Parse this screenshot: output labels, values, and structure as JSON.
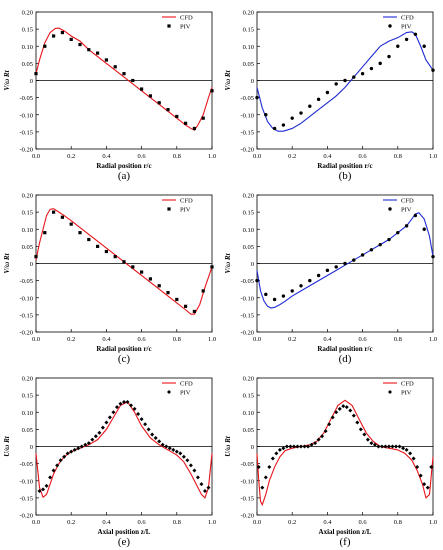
{
  "figure": {
    "colors": {
      "cfd_red": "#e8141c",
      "cfd_blue": "#1f2bd4",
      "piv": "#000000",
      "axis": "#000000"
    }
  },
  "chart_data": [
    {
      "id": "a",
      "type": "line",
      "panel_label": "(a)",
      "xlabel": "Radial position r/c",
      "ylabel": "V/ω Rt",
      "xlim": [
        0.0,
        1.0
      ],
      "ylim": [
        -0.2,
        0.2
      ],
      "xticks": [
        "0.0",
        "0.2",
        "0.4",
        "0.6",
        "0.8",
        "1.0"
      ],
      "yticks": [
        "0.20",
        "0.15",
        "0.10",
        "0.05",
        "0",
        "-0.05",
        "-0.10",
        "-0.15",
        "-0.20"
      ],
      "legend": "top-right",
      "series": [
        {
          "name": "CFD",
          "style": "line",
          "color": "red",
          "x": [
            0.0,
            0.02,
            0.05,
            0.08,
            0.11,
            0.13,
            0.16,
            0.2,
            0.25,
            0.3,
            0.35,
            0.4,
            0.45,
            0.5,
            0.55,
            0.6,
            0.65,
            0.7,
            0.75,
            0.8,
            0.85,
            0.88,
            0.9,
            0.92,
            0.95,
            0.98,
            1.0
          ],
          "y": [
            0.02,
            0.06,
            0.11,
            0.14,
            0.152,
            0.153,
            0.145,
            0.13,
            0.115,
            0.09,
            0.07,
            0.05,
            0.03,
            0.01,
            -0.01,
            -0.03,
            -0.05,
            -0.07,
            -0.09,
            -0.11,
            -0.13,
            -0.14,
            -0.145,
            -0.13,
            -0.1,
            -0.05,
            -0.02
          ]
        },
        {
          "name": "PIV",
          "style": "markers",
          "marker": "square",
          "x": [
            0.0,
            0.05,
            0.1,
            0.15,
            0.2,
            0.25,
            0.3,
            0.35,
            0.4,
            0.45,
            0.5,
            0.55,
            0.6,
            0.65,
            0.7,
            0.75,
            0.8,
            0.85,
            0.9,
            0.95,
            1.0
          ],
          "y": [
            0.02,
            0.1,
            0.13,
            0.14,
            0.12,
            0.105,
            0.09,
            0.08,
            0.06,
            0.04,
            0.02,
            0.0,
            -0.025,
            -0.045,
            -0.065,
            -0.085,
            -0.105,
            -0.125,
            -0.14,
            -0.11,
            -0.03
          ]
        }
      ]
    },
    {
      "id": "b",
      "type": "line",
      "panel_label": "(b)",
      "xlabel": "Radial position r/c",
      "ylabel": "V/ω Rt",
      "xlim": [
        0.0,
        1.0
      ],
      "ylim": [
        -0.2,
        0.2
      ],
      "xticks": [
        "0.0",
        "0.2",
        "0.4",
        "0.6",
        "0.8",
        "1.0"
      ],
      "yticks": [
        "0.20",
        "0.15",
        "0.10",
        "0.05",
        "0",
        "-0.05",
        "-0.10",
        "-0.15",
        "-0.20"
      ],
      "legend": "top-right",
      "series": [
        {
          "name": "CFD",
          "style": "line",
          "color": "blue",
          "x": [
            0.0,
            0.03,
            0.06,
            0.09,
            0.12,
            0.15,
            0.2,
            0.25,
            0.3,
            0.35,
            0.4,
            0.45,
            0.5,
            0.55,
            0.6,
            0.65,
            0.7,
            0.75,
            0.8,
            0.85,
            0.88,
            0.9,
            0.93,
            0.96,
            1.0
          ],
          "y": [
            -0.02,
            -0.08,
            -0.12,
            -0.14,
            -0.148,
            -0.148,
            -0.14,
            -0.125,
            -0.105,
            -0.085,
            -0.065,
            -0.045,
            -0.02,
            0.01,
            0.04,
            0.07,
            0.1,
            0.115,
            0.125,
            0.14,
            0.142,
            0.135,
            0.1,
            0.06,
            0.03
          ]
        },
        {
          "name": "PIV",
          "style": "markers",
          "marker": "circle",
          "x": [
            0.0,
            0.05,
            0.1,
            0.15,
            0.2,
            0.25,
            0.3,
            0.35,
            0.4,
            0.45,
            0.5,
            0.55,
            0.6,
            0.65,
            0.7,
            0.75,
            0.8,
            0.85,
            0.9,
            0.95,
            1.0
          ],
          "y": [
            -0.05,
            -0.1,
            -0.14,
            -0.13,
            -0.11,
            -0.095,
            -0.075,
            -0.055,
            -0.035,
            -0.01,
            0.0,
            0.01,
            0.02,
            0.035,
            0.05,
            0.07,
            0.1,
            0.12,
            0.135,
            0.1,
            0.03
          ]
        }
      ]
    },
    {
      "id": "c",
      "type": "line",
      "panel_label": "(c)",
      "xlabel": "Radial position r/c",
      "ylabel": "V/ω Rt",
      "xlim": [
        0.0,
        1.0
      ],
      "ylim": [
        -0.2,
        0.2
      ],
      "xticks": [
        "0.0",
        "0.2",
        "0.4",
        "0.6",
        "0.8",
        "1.0"
      ],
      "yticks": [
        "0.20",
        "0.15",
        "0.10",
        "0.05",
        "0",
        "-0.05",
        "-0.10",
        "-0.15",
        "-0.20"
      ],
      "legend": "top-right",
      "series": [
        {
          "name": "CFD",
          "style": "line",
          "color": "red",
          "x": [
            0.0,
            0.02,
            0.04,
            0.06,
            0.08,
            0.1,
            0.13,
            0.16,
            0.2,
            0.25,
            0.3,
            0.35,
            0.4,
            0.45,
            0.5,
            0.55,
            0.6,
            0.65,
            0.7,
            0.75,
            0.8,
            0.85,
            0.88,
            0.9,
            0.93,
            0.96,
            1.0
          ],
          "y": [
            0.01,
            0.06,
            0.1,
            0.14,
            0.158,
            0.16,
            0.15,
            0.14,
            0.125,
            0.105,
            0.085,
            0.065,
            0.045,
            0.025,
            0.005,
            -0.015,
            -0.035,
            -0.055,
            -0.075,
            -0.095,
            -0.115,
            -0.135,
            -0.148,
            -0.148,
            -0.12,
            -0.07,
            -0.01
          ]
        },
        {
          "name": "PIV",
          "style": "markers",
          "marker": "square",
          "x": [
            0.0,
            0.05,
            0.1,
            0.15,
            0.2,
            0.25,
            0.3,
            0.35,
            0.4,
            0.45,
            0.5,
            0.55,
            0.6,
            0.65,
            0.7,
            0.75,
            0.8,
            0.85,
            0.9,
            0.95,
            1.0
          ],
          "y": [
            0.02,
            0.09,
            0.15,
            0.135,
            0.115,
            0.09,
            0.07,
            0.05,
            0.035,
            0.02,
            0.005,
            -0.01,
            -0.025,
            -0.045,
            -0.065,
            -0.085,
            -0.105,
            -0.125,
            -0.14,
            -0.08,
            -0.01
          ]
        }
      ]
    },
    {
      "id": "d",
      "type": "line",
      "panel_label": "(d)",
      "xlabel": "Radial position r/c",
      "ylabel": "V/ω Rt",
      "xlim": [
        0.0,
        1.0
      ],
      "ylim": [
        -0.2,
        0.2
      ],
      "xticks": [
        "0.0",
        "0.2",
        "0.4",
        "0.6",
        "0.8",
        "1.0"
      ],
      "yticks": [
        "0.20",
        "0.15",
        "0.10",
        "0.05",
        "0",
        "-0.05",
        "-0.10",
        "-0.15",
        "-0.20"
      ],
      "legend": "top-right",
      "series": [
        {
          "name": "CFD",
          "style": "line",
          "color": "blue",
          "x": [
            0.0,
            0.02,
            0.04,
            0.06,
            0.08,
            0.1,
            0.13,
            0.16,
            0.2,
            0.25,
            0.3,
            0.35,
            0.4,
            0.45,
            0.5,
            0.55,
            0.6,
            0.65,
            0.7,
            0.75,
            0.8,
            0.85,
            0.88,
            0.9,
            0.92,
            0.95,
            0.98,
            1.0
          ],
          "y": [
            -0.02,
            -0.08,
            -0.11,
            -0.125,
            -0.13,
            -0.128,
            -0.12,
            -0.11,
            -0.095,
            -0.08,
            -0.065,
            -0.05,
            -0.035,
            -0.02,
            -0.005,
            0.01,
            0.025,
            0.04,
            0.055,
            0.07,
            0.09,
            0.11,
            0.13,
            0.145,
            0.148,
            0.13,
            0.08,
            0.02
          ]
        },
        {
          "name": "PIV",
          "style": "markers",
          "marker": "circle",
          "x": [
            0.0,
            0.05,
            0.1,
            0.15,
            0.2,
            0.25,
            0.3,
            0.35,
            0.4,
            0.45,
            0.5,
            0.55,
            0.6,
            0.65,
            0.7,
            0.75,
            0.8,
            0.85,
            0.9,
            0.95,
            1.0
          ],
          "y": [
            -0.05,
            -0.09,
            -0.105,
            -0.095,
            -0.08,
            -0.065,
            -0.05,
            -0.035,
            -0.02,
            -0.01,
            0.0,
            0.01,
            0.025,
            0.04,
            0.055,
            0.07,
            0.09,
            0.11,
            0.14,
            0.1,
            0.02
          ]
        }
      ]
    },
    {
      "id": "e",
      "type": "line",
      "panel_label": "(e)",
      "xlabel": "Axial position z/L",
      "ylabel": "U/ω Rt",
      "xlim": [
        0.0,
        1.0
      ],
      "ylim": [
        -0.2,
        0.2
      ],
      "xticks": [
        "0.0",
        "0.2",
        "0.4",
        "0.6",
        "0.8",
        "1.0"
      ],
      "yticks": [
        "0.20",
        "0.15",
        "0.10",
        "0.05",
        "0",
        "-0.05",
        "-0.10",
        "-0.15",
        "-0.20"
      ],
      "legend": "top-right",
      "series": [
        {
          "name": "CFD",
          "style": "line",
          "color": "red",
          "x": [
            0.0,
            0.02,
            0.04,
            0.06,
            0.08,
            0.1,
            0.13,
            0.16,
            0.2,
            0.25,
            0.3,
            0.35,
            0.4,
            0.44,
            0.48,
            0.52,
            0.56,
            0.6,
            0.65,
            0.7,
            0.75,
            0.8,
            0.84,
            0.88,
            0.91,
            0.94,
            0.96,
            0.98,
            1.0
          ],
          "y": [
            -0.02,
            -0.12,
            -0.148,
            -0.14,
            -0.11,
            -0.08,
            -0.05,
            -0.03,
            -0.015,
            -0.005,
            0.005,
            0.02,
            0.05,
            0.085,
            0.12,
            0.13,
            0.1,
            0.06,
            0.025,
            0.005,
            -0.01,
            -0.025,
            -0.045,
            -0.08,
            -0.11,
            -0.14,
            -0.15,
            -0.12,
            -0.02
          ]
        },
        {
          "name": "PIV",
          "style": "markers",
          "marker": "diamond",
          "x": [
            0.02,
            0.04,
            0.06,
            0.08,
            0.1,
            0.12,
            0.14,
            0.16,
            0.18,
            0.2,
            0.22,
            0.24,
            0.26,
            0.28,
            0.3,
            0.32,
            0.34,
            0.36,
            0.38,
            0.4,
            0.42,
            0.44,
            0.46,
            0.48,
            0.5,
            0.52,
            0.54,
            0.56,
            0.58,
            0.6,
            0.62,
            0.64,
            0.66,
            0.68,
            0.7,
            0.72,
            0.74,
            0.76,
            0.78,
            0.8,
            0.82,
            0.84,
            0.86,
            0.88,
            0.9,
            0.92,
            0.94,
            0.96,
            0.98
          ],
          "y": [
            -0.13,
            -0.125,
            -0.115,
            -0.09,
            -0.07,
            -0.055,
            -0.04,
            -0.03,
            -0.02,
            -0.015,
            -0.01,
            -0.005,
            0.0,
            0.005,
            0.01,
            0.02,
            0.03,
            0.04,
            0.055,
            0.07,
            0.085,
            0.1,
            0.115,
            0.125,
            0.13,
            0.13,
            0.12,
            0.11,
            0.095,
            0.08,
            0.065,
            0.05,
            0.035,
            0.025,
            0.015,
            0.005,
            0.0,
            -0.005,
            -0.01,
            -0.015,
            -0.02,
            -0.03,
            -0.04,
            -0.055,
            -0.07,
            -0.09,
            -0.11,
            -0.13,
            -0.12
          ]
        }
      ]
    },
    {
      "id": "f",
      "type": "line",
      "panel_label": "(f)",
      "xlabel": "Axial position z/L",
      "ylabel": "U/ω Rt",
      "xlim": [
        0.0,
        1.0
      ],
      "ylim": [
        -0.2,
        0.2
      ],
      "xticks": [
        "0.0",
        "0.2",
        "0.4",
        "0.6",
        "0.8",
        "1.0"
      ],
      "yticks": [
        "0.20",
        "0.15",
        "0.10",
        "0.05",
        "0",
        "-0.05",
        "-0.10",
        "-0.15",
        "-0.20"
      ],
      "legend": "top-right",
      "series": [
        {
          "name": "CFD",
          "style": "line",
          "color": "red",
          "x": [
            0.0,
            0.01,
            0.02,
            0.03,
            0.05,
            0.07,
            0.1,
            0.13,
            0.16,
            0.2,
            0.25,
            0.3,
            0.34,
            0.38,
            0.42,
            0.46,
            0.5,
            0.54,
            0.58,
            0.62,
            0.66,
            0.7,
            0.75,
            0.8,
            0.84,
            0.88,
            0.91,
            0.94,
            0.96,
            0.98,
            1.0
          ],
          "y": [
            -0.02,
            -0.1,
            -0.16,
            -0.17,
            -0.14,
            -0.1,
            -0.06,
            -0.03,
            -0.012,
            -0.005,
            0.0,
            0.005,
            0.015,
            0.04,
            0.08,
            0.12,
            0.135,
            0.12,
            0.08,
            0.04,
            0.015,
            0.0,
            -0.005,
            -0.01,
            -0.02,
            -0.04,
            -0.07,
            -0.11,
            -0.15,
            -0.14,
            -0.03
          ]
        },
        {
          "name": "PIV",
          "style": "markers",
          "marker": "diamond",
          "x": [
            0.01,
            0.03,
            0.05,
            0.07,
            0.09,
            0.11,
            0.13,
            0.15,
            0.17,
            0.19,
            0.21,
            0.23,
            0.25,
            0.27,
            0.29,
            0.31,
            0.33,
            0.35,
            0.37,
            0.39,
            0.41,
            0.43,
            0.45,
            0.47,
            0.49,
            0.51,
            0.53,
            0.55,
            0.57,
            0.59,
            0.61,
            0.63,
            0.65,
            0.67,
            0.69,
            0.71,
            0.73,
            0.75,
            0.77,
            0.79,
            0.81,
            0.83,
            0.85,
            0.87,
            0.89,
            0.91,
            0.93,
            0.95,
            0.97,
            0.99
          ],
          "y": [
            -0.06,
            -0.12,
            -0.09,
            -0.06,
            -0.035,
            -0.02,
            -0.01,
            -0.005,
            0.0,
            0.0,
            0.0,
            0.0,
            0.0,
            0.0,
            0.0,
            0.005,
            0.01,
            0.02,
            0.03,
            0.045,
            0.065,
            0.085,
            0.1,
            0.11,
            0.118,
            0.115,
            0.105,
            0.09,
            0.07,
            0.05,
            0.035,
            0.02,
            0.01,
            0.005,
            0.0,
            0.0,
            0.0,
            0.0,
            0.0,
            0.0,
            0.0,
            -0.005,
            -0.01,
            -0.02,
            -0.035,
            -0.06,
            -0.085,
            -0.11,
            -0.12,
            -0.06
          ]
        }
      ]
    }
  ]
}
